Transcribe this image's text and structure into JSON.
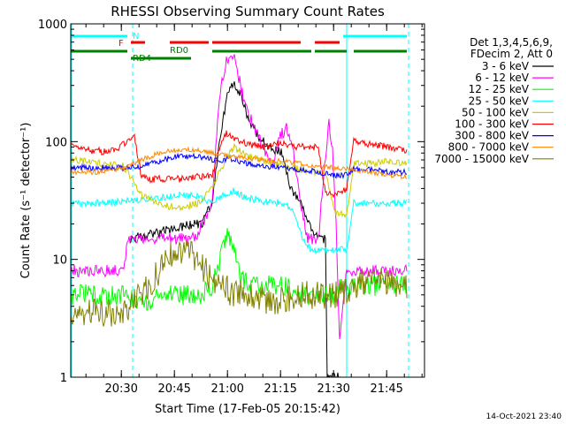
{
  "chart_data": {
    "type": "line",
    "title": "RHESSI Observing Summary Count Rates",
    "xlabel": "Start Time (17-Feb-05 20:15:42)",
    "ylabel": "Count Rate (s⁻¹ detector⁻¹)",
    "yscale": "log",
    "ylim": [
      1,
      1000
    ],
    "xlim": [
      0,
      100
    ],
    "x_unit": "minutes after 20:15:42",
    "x_ticks": [
      {
        "label": "20:30",
        "x": 14.3
      },
      {
        "label": "20:45",
        "x": 29.3
      },
      {
        "label": "21:00",
        "x": 44.3
      },
      {
        "label": "21:15",
        "x": 59.3
      },
      {
        "label": "21:30",
        "x": 74.3
      },
      {
        "label": "21:45",
        "x": 89.3
      }
    ],
    "y_ticks": [
      {
        "label": "1",
        "y": 1
      },
      {
        "label": "10",
        "y": 10
      },
      {
        "label": "100",
        "y": 100
      },
      {
        "label": "1000",
        "y": 1000
      }
    ],
    "legend": {
      "position": "top-right",
      "header": [
        "Det 1,3,4,5,6,9,",
        "FDecim 2, Att 0"
      ]
    },
    "series": [
      {
        "name": "3 - 6 keV",
        "color": "#000000",
        "x": [
          0,
          16,
          16.5,
          25,
          35,
          37,
          40,
          42,
          44,
          46,
          48,
          50,
          53,
          56,
          60,
          62,
          65,
          67,
          70,
          72,
          72.5,
          76,
          77,
          79
        ],
        "y": [
          null,
          null,
          15,
          17,
          20,
          20,
          30,
          100,
          230,
          320,
          260,
          160,
          110,
          90,
          80,
          40,
          30,
          20,
          15,
          15,
          1,
          1,
          0.6,
          null
        ]
      },
      {
        "name": "6 - 12 keV",
        "color": "#ff00ff",
        "x": [
          0,
          15,
          16,
          25,
          35,
          40,
          42,
          44,
          46,
          48,
          50,
          53,
          55,
          57,
          59,
          61,
          63,
          65,
          67,
          70,
          72,
          73,
          74,
          75,
          76,
          78,
          80,
          95
        ],
        "y": [
          8,
          8,
          15,
          15,
          15,
          30,
          250,
          500,
          550,
          300,
          180,
          110,
          80,
          65,
          110,
          130,
          80,
          30,
          15,
          15,
          75,
          140,
          90,
          20,
          2,
          8,
          8,
          8
        ]
      },
      {
        "name": "12 - 25 keV",
        "color": "#00ff00",
        "x": [
          0,
          15,
          16,
          22,
          28,
          32,
          37,
          40,
          43,
          44,
          46,
          48,
          52,
          56,
          60,
          65,
          70,
          75,
          76,
          80,
          95
        ],
        "y": [
          5,
          5,
          4.5,
          4.5,
          5,
          5,
          5,
          6,
          12,
          17,
          12,
          7,
          6,
          6,
          6,
          5,
          5,
          5,
          6,
          6,
          6
        ]
      },
      {
        "name": "25 - 50 keV",
        "color": "#00ffff",
        "x": [
          0,
          10,
          18,
          25,
          30,
          35,
          40,
          43,
          46,
          50,
          55,
          60,
          62,
          64,
          66,
          68,
          70,
          72,
          75,
          78,
          80,
          85,
          90,
          95
        ],
        "y": [
          30,
          30,
          32,
          33,
          35,
          35,
          30,
          35,
          38,
          33,
          31,
          30,
          28,
          20,
          14,
          12,
          12,
          12,
          12,
          12,
          30,
          30,
          30,
          30
        ]
      },
      {
        "name": "50 - 100 keV",
        "color": "#cccc00",
        "x": [
          0,
          10,
          15,
          20,
          25,
          28,
          32,
          36,
          40,
          42,
          46,
          50,
          55,
          60,
          65,
          70,
          72,
          75,
          78,
          80,
          85,
          90,
          95
        ],
        "y": [
          70,
          65,
          62,
          35,
          30,
          28,
          28,
          30,
          40,
          55,
          90,
          75,
          68,
          62,
          58,
          55,
          55,
          24,
          24,
          65,
          65,
          68,
          65
        ]
      },
      {
        "name": "100 - 300 keV",
        "color": "#ff0000",
        "x": [
          0,
          5,
          10,
          13,
          15,
          18,
          20,
          22,
          25,
          30,
          35,
          40,
          42,
          44,
          46,
          50,
          53,
          55,
          58,
          60,
          65,
          70,
          72,
          73,
          75,
          78,
          80,
          85,
          90,
          95
        ],
        "y": [
          90,
          85,
          82,
          85,
          95,
          110,
          50,
          48,
          48,
          48,
          50,
          52,
          90,
          120,
          105,
          95,
          92,
          90,
          100,
          95,
          90,
          90,
          36,
          36,
          36,
          40,
          100,
          95,
          90,
          85
        ]
      },
      {
        "name": "300 - 800 keV",
        "color": "#0000ff",
        "x": [
          0,
          8,
          15,
          20,
          25,
          30,
          35,
          40,
          43,
          45,
          50,
          55,
          60,
          65,
          70,
          75,
          78,
          80,
          85,
          90,
          95
        ],
        "y": [
          60,
          60,
          60,
          62,
          68,
          75,
          75,
          70,
          70,
          72,
          65,
          62,
          60,
          58,
          55,
          52,
          52,
          58,
          58,
          55,
          55
        ]
      },
      {
        "name": "800 - 7000 keV",
        "color": "#ff8800",
        "x": [
          0,
          8,
          15,
          20,
          25,
          30,
          35,
          40,
          45,
          50,
          55,
          60,
          65,
          70,
          75,
          80,
          85,
          90,
          95
        ],
        "y": [
          55,
          55,
          60,
          70,
          80,
          85,
          85,
          80,
          75,
          72,
          70,
          68,
          65,
          62,
          60,
          58,
          55,
          52,
          50
        ]
      },
      {
        "name": "7000 - 15000 keV",
        "color": "#808000",
        "x": [
          0,
          10,
          15,
          18,
          22,
          25,
          28,
          31,
          34,
          36,
          38,
          40,
          43,
          46,
          50,
          55,
          60,
          65,
          70,
          75,
          80,
          85,
          90,
          95
        ],
        "y": [
          3.5,
          3.5,
          3.5,
          4.5,
          6,
          8,
          11,
          12,
          11,
          10,
          8,
          7,
          6,
          5,
          5,
          4.5,
          4.5,
          5,
          5,
          5,
          6,
          6.5,
          6.5,
          6
        ]
      }
    ],
    "annotations": {
      "flags": [
        {
          "label": "N",
          "color": "#00ffff",
          "segments": [
            [
              0,
              16
            ],
            [
              77,
              95
            ]
          ]
        },
        {
          "label": "F",
          "color": "#ff0000",
          "segments": [
            [
              17,
              21
            ],
            [
              28,
              39
            ],
            [
              40,
              65
            ],
            [
              69,
              76
            ]
          ]
        },
        {
          "label": "RD0",
          "color": "#008000",
          "segments": [
            [
              0,
              16
            ],
            [
              40,
              68
            ],
            [
              69,
              78
            ],
            [
              80,
              95
            ]
          ]
        },
        {
          "label": "RD4",
          "color": "#008000",
          "segments": [
            [
              17,
              34
            ]
          ]
        }
      ],
      "vertical_lines": {
        "color": "#00ffff",
        "dashed_at": [
          17.5,
          95.5
        ],
        "solid_at": [
          78
        ]
      }
    },
    "timestamp": "14-Oct-2021 23:40",
    "grid": false
  }
}
